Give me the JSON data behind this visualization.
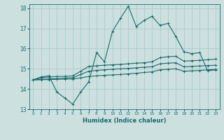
{
  "xlabel": "Humidex (Indice chaleur)",
  "xlim": [
    -0.5,
    23.5
  ],
  "ylim": [
    13,
    18.2
  ],
  "yticks": [
    13,
    14,
    15,
    16,
    17,
    18
  ],
  "xticks": [
    0,
    1,
    2,
    3,
    4,
    5,
    6,
    7,
    8,
    9,
    10,
    11,
    12,
    13,
    14,
    15,
    16,
    17,
    18,
    19,
    20,
    21,
    22,
    23
  ],
  "bg_color": "#cce0e0",
  "grid_color": "#b0cccc",
  "line_color": "#1a6b6b",
  "lines": [
    {
      "x": [
        0,
        1,
        2,
        3,
        4,
        5,
        6,
        7,
        8,
        9,
        10,
        11,
        12,
        13,
        14,
        15,
        16,
        17,
        18,
        19,
        20,
        21,
        22,
        23
      ],
      "y": [
        14.45,
        14.6,
        14.65,
        13.85,
        13.55,
        13.25,
        13.85,
        14.35,
        15.8,
        15.35,
        16.85,
        17.5,
        18.1,
        17.1,
        17.4,
        17.6,
        17.15,
        17.25,
        16.6,
        15.85,
        15.75,
        15.8,
        14.9,
        14.95
      ]
    },
    {
      "x": [
        0,
        1,
        2,
        3,
        4,
        5,
        6,
        7,
        8,
        9,
        10,
        11,
        12,
        13,
        14,
        15,
        16,
        17,
        18,
        19,
        20,
        21,
        22,
        23
      ],
      "y": [
        14.45,
        14.55,
        14.6,
        14.62,
        14.63,
        14.65,
        14.88,
        15.12,
        15.15,
        15.18,
        15.2,
        15.22,
        15.25,
        15.28,
        15.3,
        15.35,
        15.55,
        15.6,
        15.62,
        15.38,
        15.4,
        15.42,
        15.45,
        15.48
      ]
    },
    {
      "x": [
        0,
        1,
        2,
        3,
        4,
        5,
        6,
        7,
        8,
        9,
        10,
        11,
        12,
        13,
        14,
        15,
        16,
        17,
        18,
        19,
        20,
        21,
        22,
        23
      ],
      "y": [
        14.45,
        14.48,
        14.5,
        14.52,
        14.54,
        14.56,
        14.72,
        14.88,
        14.92,
        14.95,
        14.98,
        15.0,
        15.02,
        15.05,
        15.08,
        15.1,
        15.25,
        15.28,
        15.3,
        15.1,
        15.12,
        15.14,
        15.16,
        15.18
      ]
    },
    {
      "x": [
        0,
        1,
        2,
        3,
        4,
        5,
        6,
        7,
        8,
        9,
        10,
        11,
        12,
        13,
        14,
        15,
        16,
        17,
        18,
        19,
        20,
        21,
        22,
        23
      ],
      "y": [
        14.45,
        14.46,
        14.47,
        14.48,
        14.49,
        14.5,
        14.55,
        14.62,
        14.65,
        14.68,
        14.7,
        14.72,
        14.75,
        14.78,
        14.82,
        14.85,
        14.95,
        14.98,
        15.0,
        14.88,
        14.9,
        14.92,
        14.95,
        14.97
      ]
    }
  ]
}
